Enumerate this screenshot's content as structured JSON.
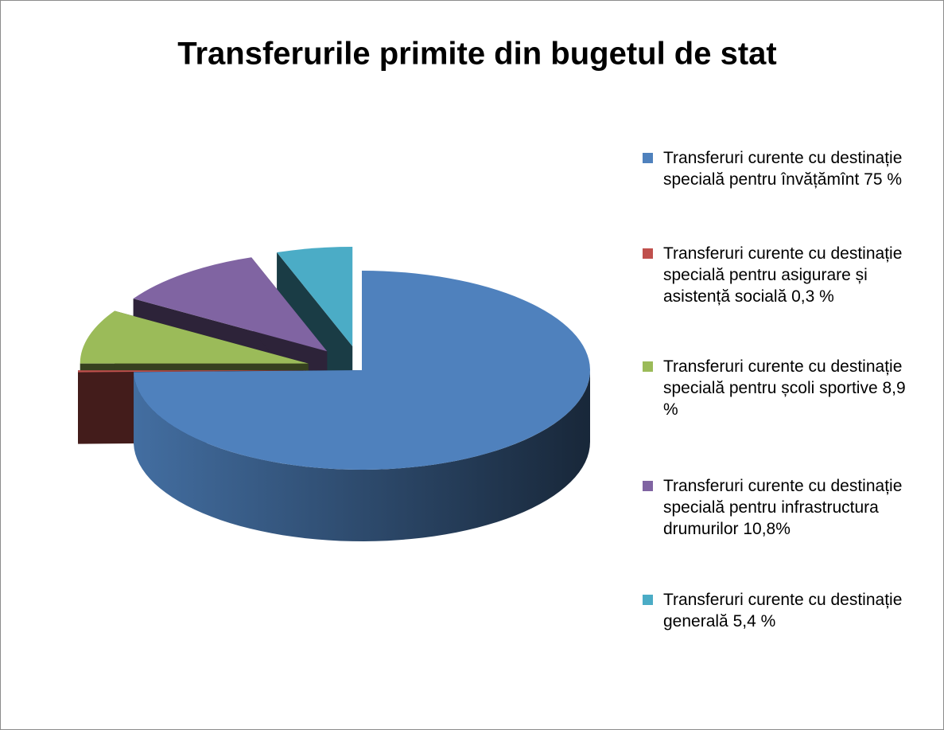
{
  "chart_data": {
    "type": "pie3d",
    "title": "Transferurile primite din bugetul de stat",
    "categories": [
      "Transferuri curente cu destinație specială pentru învățămînt 75 %",
      "Transferuri curente cu destinație specială pentru asigurare și asistență socială 0,3 %",
      "Transferuri curente cu destinație specială pentru școli sportive 8,9 %",
      "Transferuri curente cu destinație specială pentru infrastructura drumurilor 10,8%",
      "Transferuri curente cu destinație generală 5,4 %"
    ],
    "values": [
      75,
      0.3,
      8.9,
      10.8,
      5.4
    ],
    "colors": [
      "#4f81bd",
      "#c0504d",
      "#9bbb59",
      "#8064a2",
      "#4bacc6"
    ],
    "legend": "right"
  }
}
